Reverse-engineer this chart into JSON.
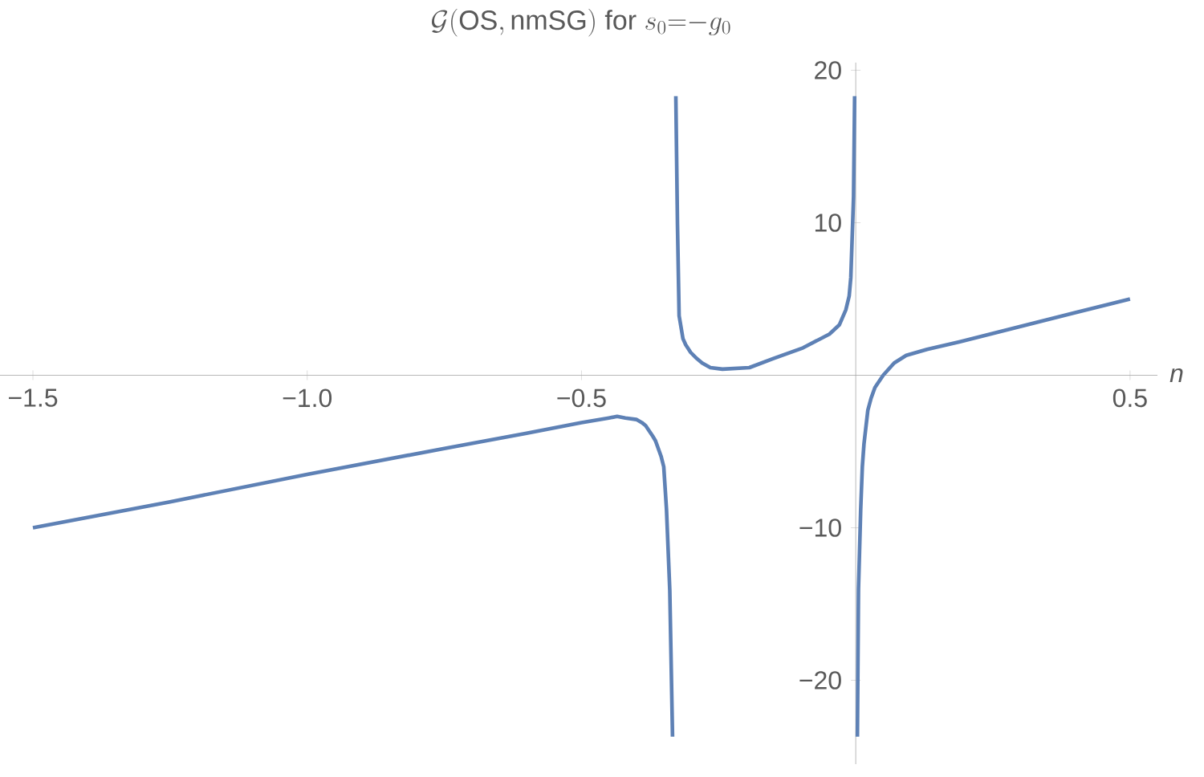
{
  "chart_data": {
    "type": "line",
    "title": "\\mathcal{G}(\\mathrm{OS,nmSG})\\ \\mathrm{for}\\ s_0\\mathrm{=}{-}g_0",
    "xlabel": "n",
    "xlim": [
      -1.56,
      0.55
    ],
    "ylim": [
      -25.5,
      20.5
    ],
    "xticks": [
      {
        "value": -1.5,
        "label": "−1.5"
      },
      {
        "value": -1.0,
        "label": "−1.0"
      },
      {
        "value": -0.5,
        "label": "−0.5"
      },
      {
        "value": 0.5,
        "label": "0.5"
      }
    ],
    "yticks": [
      {
        "value": -20,
        "label": "−20"
      },
      {
        "value": -10,
        "label": "−10"
      },
      10,
      20
    ],
    "grid": false,
    "marker": "none",
    "line_style": "solid",
    "series": [
      {
        "color": "#5e81b5",
        "x": [
          -1.5,
          -1.25,
          -1.0,
          -0.75,
          -0.6,
          -0.5,
          -0.45,
          -0.435,
          -0.42,
          -0.4,
          -0.39,
          -0.383,
          -0.37,
          -0.365,
          -0.355,
          -0.35,
          -0.345,
          -0.339,
          -0.334
        ],
        "values": [
          -10,
          -8.3,
          -6.5,
          -4.8,
          -3.8,
          -3.1,
          -2.8,
          -2.7,
          -2.8,
          -2.9,
          -3.1,
          -3.3,
          -4.0,
          -4.3,
          -5.3,
          -6.0,
          -8.8,
          -14.1,
          -23.7
        ]
      },
      {
        "color": "#5e81b5",
        "x": [
          -0.328,
          -0.325,
          -0.322,
          -0.315,
          -0.31,
          -0.301,
          -0.29,
          -0.28,
          -0.265,
          -0.243,
          -0.194,
          -0.15,
          -0.096,
          -0.048,
          -0.03,
          -0.018,
          -0.012,
          -0.009,
          -0.004,
          -0.002
        ],
        "values": [
          18.3,
          9.9,
          3.9,
          2.4,
          2.0,
          1.5,
          1.1,
          0.8,
          0.5,
          0.4,
          0.5,
          1.1,
          1.8,
          2.7,
          3.3,
          4.3,
          5.2,
          6.4,
          11.7,
          18.3
        ]
      },
      {
        "color": "#5e81b5",
        "x": [
          0.003,
          0.005,
          0.009,
          0.012,
          0.015,
          0.022,
          0.028,
          0.035,
          0.05,
          0.07,
          0.092,
          0.13,
          0.19,
          0.3,
          0.4,
          0.5
        ],
        "values": [
          -23.7,
          -14,
          -8.8,
          -6.0,
          -4.5,
          -2.3,
          -1.5,
          -0.8,
          0,
          0.8,
          1.3,
          1.7,
          2.2,
          3.2,
          4.1,
          5.0
        ]
      }
    ]
  }
}
